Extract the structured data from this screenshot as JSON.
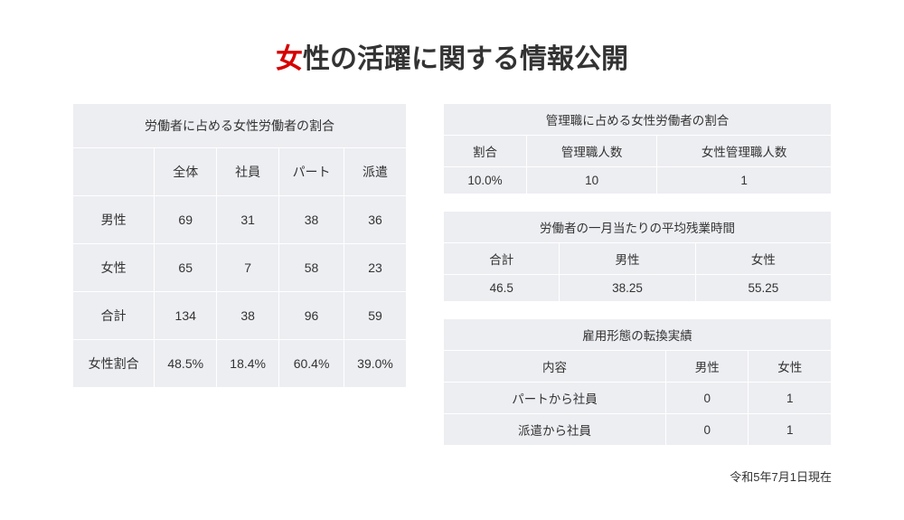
{
  "title_red": "女",
  "title_rest": "性の活躍に関する情報公開",
  "left_table": {
    "caption": "労働者に占める女性労働者の割合",
    "columns": [
      "",
      "全体",
      "社員",
      "パート",
      "派遣"
    ],
    "rows": [
      [
        "男性",
        "69",
        "31",
        "38",
        "36"
      ],
      [
        "女性",
        "65",
        "7",
        "58",
        "23"
      ],
      [
        "合計",
        "134",
        "38",
        "96",
        "59"
      ],
      [
        "女性割合",
        "48.5%",
        "18.4%",
        "60.4%",
        "39.0%"
      ]
    ]
  },
  "right_tables": [
    {
      "caption": "管理職に占める女性労働者の割合",
      "columns": [
        "割合",
        "管理職人数",
        "女性管理職人数"
      ],
      "rows": [
        [
          "10.0%",
          "10",
          "1"
        ]
      ]
    },
    {
      "caption": "労働者の一月当たりの平均残業時間",
      "columns": [
        "合計",
        "男性",
        "女性"
      ],
      "rows": [
        [
          "46.5",
          "38.25",
          "55.25"
        ]
      ]
    },
    {
      "caption": "雇用形態の転換実績",
      "columns": [
        "内容",
        "男性",
        "女性"
      ],
      "rows": [
        [
          "パートから社員",
          "0",
          "1"
        ],
        [
          "派遣から社員",
          "0",
          "1"
        ]
      ]
    }
  ],
  "footnote": "令和5年7月1日現在",
  "colors": {
    "background": "#ffffff",
    "cell_bg": "#edeef2",
    "cell_border": "#ffffff",
    "text": "#333333",
    "accent_red": "#d60000"
  }
}
